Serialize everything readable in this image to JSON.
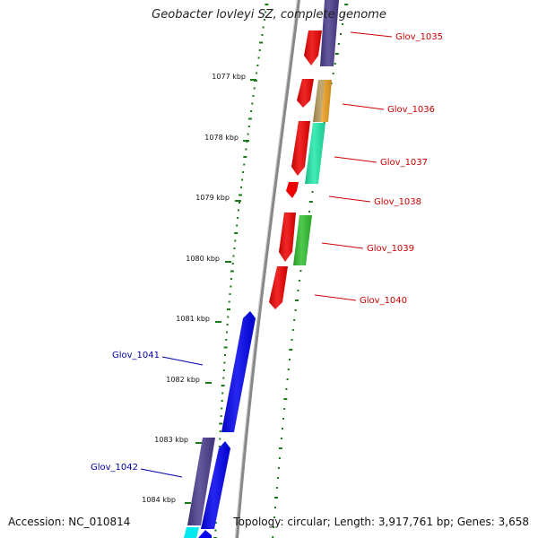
{
  "title": "Geobacter lovleyi SZ, complete genome",
  "footer": {
    "accession": "Accession: NC_010814",
    "summary": "Topology: circular; Length: 3,917,761 bp; Genes: 3,658"
  },
  "ticks": [
    "1077 kbp",
    "1078 kbp",
    "1079 kbp",
    "1080 kbp",
    "1081 kbp",
    "1082 kbp",
    "1083 kbp",
    "1084 kbp"
  ],
  "gene_labels_right": [
    "Glov_1035",
    "Glov_1036",
    "Glov_1037",
    "Glov_1038",
    "Glov_1039",
    "Glov_1040"
  ],
  "gene_labels_left": [
    "Glov_1041",
    "Glov_1042"
  ],
  "colors": {
    "forward_label": "#cc0000",
    "reverse_label": "#0000aa",
    "cds_red": "#ee0000",
    "cds_blue": "#0000ee",
    "cds_purple": "#4a3b8c",
    "cds_tan": "#b89a5a",
    "cds_orange": "#f0a020",
    "cds_aqua": "#20e8a8",
    "cds_green": "#30c030",
    "cds_cyan": "#00e8f0",
    "backbone": "#909090",
    "gc_ticks": "#1a7a1a"
  }
}
